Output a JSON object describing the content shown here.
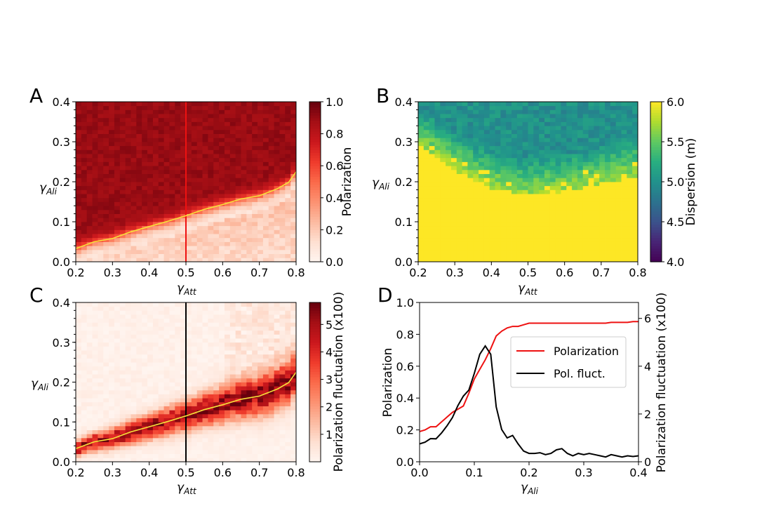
{
  "figure": {
    "panels": [
      {
        "letter": "A",
        "xlabel_main": "γ",
        "xlabel_sub": "Att",
        "ylabel_main": "γ",
        "ylabel_sub": "Ali",
        "colorbar_label": "Polarization"
      },
      {
        "letter": "B",
        "xlabel_main": "γ",
        "xlabel_sub": "Att",
        "ylabel_main": "γ",
        "ylabel_sub": "Ali",
        "colorbar_label": "Dispersion (m)"
      },
      {
        "letter": "C",
        "xlabel_main": "γ",
        "xlabel_sub": "Att",
        "ylabel_main": "γ",
        "ylabel_sub": "Ali",
        "colorbar_label": "Polarization fluctuation  (x100)"
      },
      {
        "letter": "D",
        "xlabel_main": "γ",
        "xlabel_sub": "Ali",
        "ylabel_left": "Polarization",
        "ylabel_right": "Polarization fluctuation (x100)",
        "legend": [
          "Polarization",
          "Pol. fluct."
        ]
      }
    ]
  },
  "chart_data": [
    {
      "id": "A",
      "type": "heatmap",
      "xlim": [
        0.2,
        0.8
      ],
      "ylim": [
        0.0,
        0.4
      ],
      "xticks": [
        "0.2",
        "0.3",
        "0.4",
        "0.5",
        "0.6",
        "0.7",
        "0.8"
      ],
      "yticks": [
        "0.0",
        "0.1",
        "0.2",
        "0.3",
        "0.4"
      ],
      "colorbar": {
        "range": [
          0.0,
          1.0
        ],
        "ticks": [
          "0.0",
          "0.2",
          "0.4",
          "0.6",
          "0.8",
          "1.0"
        ],
        "colormap": "Reds"
      },
      "grid": {
        "nx": 40,
        "ny": 40
      },
      "vertical_line": {
        "x": 0.5,
        "color": "#ee1111"
      },
      "transition_curve": {
        "color": "#f7e13a",
        "x": [
          0.2,
          0.25,
          0.3,
          0.35,
          0.4,
          0.45,
          0.5,
          0.55,
          0.6,
          0.65,
          0.7,
          0.75,
          0.78,
          0.8
        ],
        "y": [
          0.033,
          0.05,
          0.058,
          0.075,
          0.088,
          0.101,
          0.115,
          0.131,
          0.143,
          0.157,
          0.165,
          0.183,
          0.199,
          0.225
        ]
      },
      "phase_high_value": 0.9,
      "phase_low_value": 0.1
    },
    {
      "id": "B",
      "type": "heatmap",
      "xlim": [
        0.2,
        0.8
      ],
      "ylim": [
        0.0,
        0.4
      ],
      "xticks": [
        "0.2",
        "0.3",
        "0.4",
        "0.5",
        "0.6",
        "0.7",
        "0.8"
      ],
      "yticks": [
        "0.0",
        "0.1",
        "0.2",
        "0.3",
        "0.4"
      ],
      "colorbar": {
        "range": [
          4.0,
          6.0
        ],
        "ticks": [
          "4.0",
          "4.5",
          "5.0",
          "5.5",
          "6.0"
        ],
        "colormap": "viridis"
      },
      "grid": {
        "nx": 40,
        "ny": 40
      },
      "boundary": {
        "x": [
          0.2,
          0.3,
          0.4,
          0.5,
          0.6,
          0.7,
          0.8
        ],
        "y": [
          0.29,
          0.23,
          0.185,
          0.165,
          0.175,
          0.195,
          0.215
        ]
      }
    },
    {
      "id": "C",
      "type": "heatmap",
      "xlim": [
        0.2,
        0.8
      ],
      "ylim": [
        0.0,
        0.4
      ],
      "xticks": [
        "0.2",
        "0.3",
        "0.4",
        "0.5",
        "0.6",
        "0.7",
        "0.8"
      ],
      "yticks": [
        "0.0",
        "0.1",
        "0.2",
        "0.3",
        "0.4"
      ],
      "colorbar": {
        "range": [
          0.0,
          5.8
        ],
        "ticks": [
          "1",
          "2",
          "3",
          "4",
          "5"
        ],
        "colormap": "Reds"
      },
      "grid": {
        "nx": 40,
        "ny": 40
      },
      "vertical_line": {
        "x": 0.5,
        "color": "#000000"
      },
      "transition_curve": {
        "color": "#f7e13a",
        "x": [
          0.2,
          0.25,
          0.3,
          0.35,
          0.4,
          0.45,
          0.5,
          0.55,
          0.6,
          0.65,
          0.7,
          0.75,
          0.78,
          0.8
        ],
        "y": [
          0.033,
          0.05,
          0.058,
          0.075,
          0.088,
          0.101,
          0.115,
          0.131,
          0.143,
          0.157,
          0.165,
          0.183,
          0.199,
          0.225
        ]
      },
      "peak_value": 5.3
    },
    {
      "id": "D",
      "type": "line",
      "xlim": [
        0.0,
        0.4
      ],
      "ylim_left": [
        0.0,
        1.0
      ],
      "ylim_right": [
        0.0,
        6.667
      ],
      "xticks": [
        "0.0",
        "0.1",
        "0.2",
        "0.3",
        "0.4"
      ],
      "yticks_left": [
        "0.0",
        "0.2",
        "0.4",
        "0.6",
        "0.8",
        "1.0"
      ],
      "yticks_right": [
        "0",
        "2",
        "4",
        "6"
      ],
      "legend_position": "center-right",
      "series": [
        {
          "name": "Polarization",
          "color": "#ee1111",
          "axis": "left",
          "x": [
            0.0,
            0.01,
            0.02,
            0.03,
            0.04,
            0.05,
            0.06,
            0.07,
            0.08,
            0.09,
            0.1,
            0.11,
            0.12,
            0.13,
            0.14,
            0.15,
            0.16,
            0.17,
            0.18,
            0.19,
            0.2,
            0.21,
            0.22,
            0.23,
            0.24,
            0.25,
            0.26,
            0.27,
            0.28,
            0.29,
            0.3,
            0.31,
            0.32,
            0.33,
            0.34,
            0.35,
            0.36,
            0.37,
            0.38,
            0.39,
            0.4
          ],
          "y": [
            0.19,
            0.2,
            0.22,
            0.22,
            0.25,
            0.28,
            0.31,
            0.33,
            0.35,
            0.43,
            0.52,
            0.58,
            0.64,
            0.71,
            0.79,
            0.82,
            0.84,
            0.85,
            0.85,
            0.86,
            0.87,
            0.87,
            0.87,
            0.87,
            0.87,
            0.87,
            0.87,
            0.87,
            0.87,
            0.87,
            0.87,
            0.87,
            0.87,
            0.87,
            0.87,
            0.875,
            0.875,
            0.875,
            0.875,
            0.88,
            0.88
          ]
        },
        {
          "name": "Pol. fluct.",
          "color": "#000000",
          "axis": "right",
          "x": [
            0.0,
            0.01,
            0.02,
            0.03,
            0.04,
            0.05,
            0.06,
            0.07,
            0.08,
            0.09,
            0.1,
            0.11,
            0.12,
            0.13,
            0.14,
            0.15,
            0.16,
            0.17,
            0.18,
            0.19,
            0.2,
            0.21,
            0.22,
            0.23,
            0.24,
            0.25,
            0.26,
            0.27,
            0.28,
            0.29,
            0.3,
            0.31,
            0.32,
            0.33,
            0.34,
            0.35,
            0.36,
            0.37,
            0.38,
            0.39,
            0.4
          ],
          "y": [
            0.75,
            0.82,
            0.97,
            0.96,
            1.2,
            1.5,
            1.85,
            2.35,
            2.75,
            3.0,
            3.7,
            4.5,
            4.85,
            4.5,
            2.3,
            1.35,
            1.0,
            1.1,
            0.75,
            0.45,
            0.35,
            0.35,
            0.38,
            0.3,
            0.35,
            0.5,
            0.55,
            0.35,
            0.25,
            0.35,
            0.3,
            0.35,
            0.3,
            0.25,
            0.2,
            0.3,
            0.25,
            0.2,
            0.25,
            0.22,
            0.25
          ]
        }
      ]
    }
  ]
}
